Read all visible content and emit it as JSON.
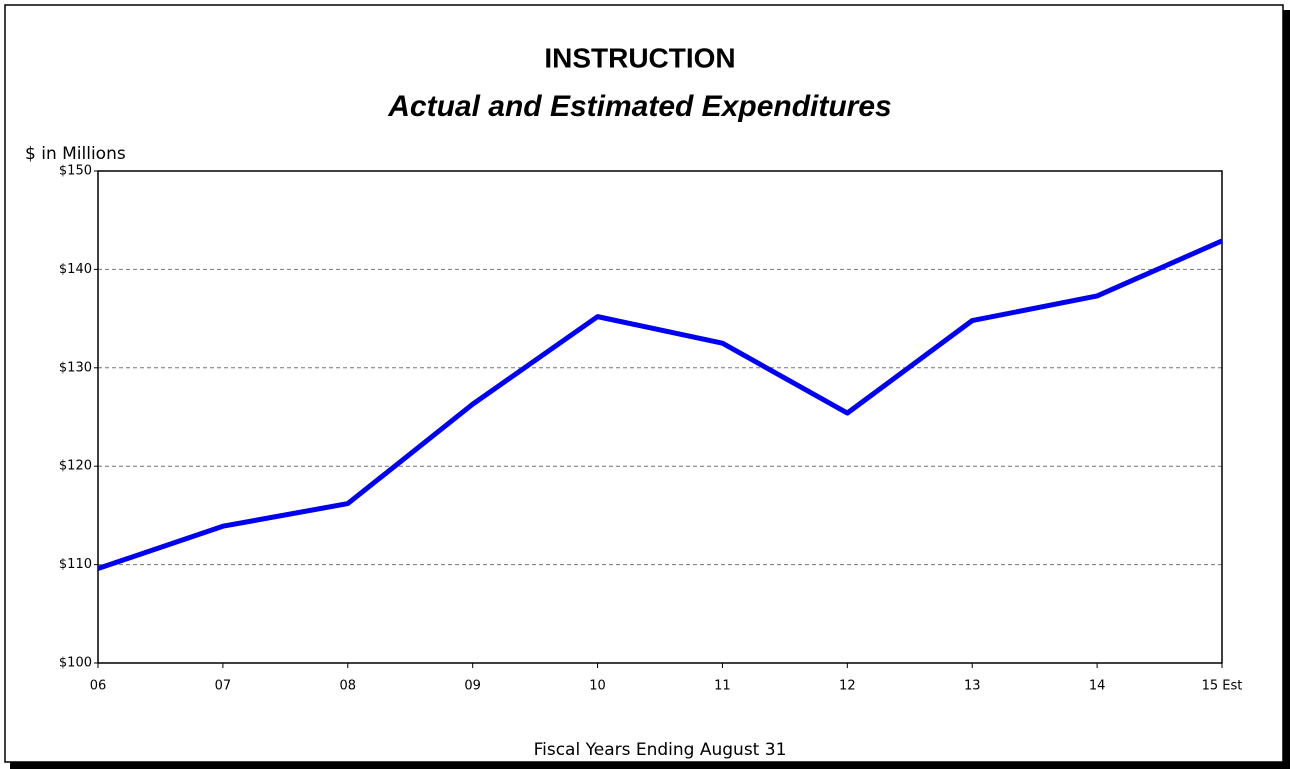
{
  "chart_data": {
    "type": "line",
    "title": "INSTRUCTION",
    "subtitle": "Actual and Estimated Expenditures",
    "y_label": "$ in Millions",
    "x_label": "Fiscal Years Ending August 31",
    "categories": [
      "06",
      "07",
      "08",
      "09",
      "10",
      "11",
      "12",
      "13",
      "14",
      "15 Est"
    ],
    "series": [
      {
        "name": "Instruction",
        "color": "#0000ee",
        "values": [
          109.6,
          113.9,
          116.2,
          126.3,
          135.2,
          132.5,
          125.4,
          134.8,
          137.3,
          142.9
        ]
      }
    ],
    "ylim": [
      100,
      150
    ],
    "yticks": [
      {
        "value": 100,
        "label": "$100"
      },
      {
        "value": 110,
        "label": "$110"
      },
      {
        "value": 120,
        "label": "$120"
      },
      {
        "value": 130,
        "label": "$130"
      },
      {
        "value": 140,
        "label": "$140"
      },
      {
        "value": 150,
        "label": "$150"
      }
    ],
    "grid": true
  }
}
